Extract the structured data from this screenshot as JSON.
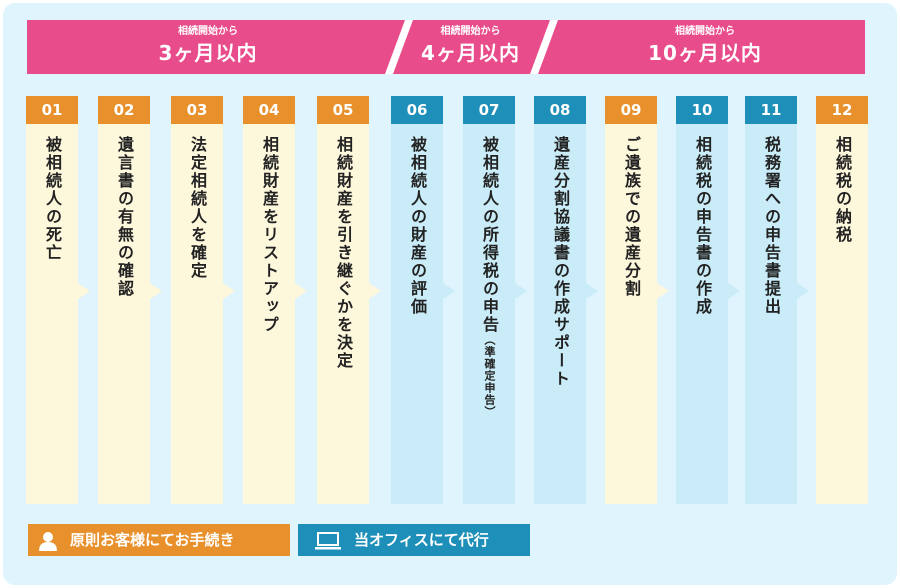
{
  "colors": {
    "phase": "#e94c8b",
    "client_header": "#e8902b",
    "client_body": "#fdf7dc",
    "office_header": "#1d8fb8",
    "office_body": "#c9ecf8",
    "background": "#dff4fc"
  },
  "phases": [
    {
      "sub": "相続開始から",
      "main": "3ヶ月以内"
    },
    {
      "sub": "相続開始から",
      "main": "4ヶ月以内"
    },
    {
      "sub": "相続開始から",
      "main": "10ヶ月以内"
    }
  ],
  "steps": [
    {
      "num": "01",
      "label": "被相続人の死亡",
      "note": "",
      "type": "client"
    },
    {
      "num": "02",
      "label": "遺言書の有無の確認",
      "note": "",
      "type": "client"
    },
    {
      "num": "03",
      "label": "法定相続人を確定",
      "note": "",
      "type": "client"
    },
    {
      "num": "04",
      "label": "相続財産をリストアップ",
      "note": "",
      "type": "client"
    },
    {
      "num": "05",
      "label": "相続財産を引き継ぐかを決定",
      "note": "",
      "type": "client"
    },
    {
      "num": "06",
      "label": "被相続人の財産の評価",
      "note": "",
      "type": "office"
    },
    {
      "num": "07",
      "label": "被相続人の所得税の申告",
      "note": "（準確定申告）",
      "type": "office"
    },
    {
      "num": "08",
      "label": "遺産分割協議書の作成サポート",
      "note": "",
      "type": "office"
    },
    {
      "num": "09",
      "label": "ご遺族での遺産分割",
      "note": "",
      "type": "client"
    },
    {
      "num": "10",
      "label": "相続税の申告書の作成",
      "note": "",
      "type": "office"
    },
    {
      "num": "11",
      "label": "税務署への申告書提出",
      "note": "",
      "type": "office"
    },
    {
      "num": "12",
      "label": "相続税の納税",
      "note": "",
      "type": "client"
    }
  ],
  "legend": {
    "client": {
      "label": "原則お客様にてお手続き",
      "icon": "person-icon"
    },
    "office": {
      "label": "当オフィスにて代行",
      "icon": "laptop-icon"
    }
  }
}
